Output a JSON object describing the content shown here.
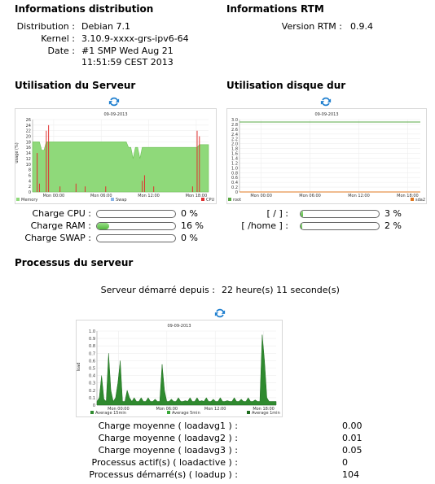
{
  "distribution": {
    "title": "Informations distribution",
    "labels": {
      "distribution": "Distribution :",
      "kernel": "Kernel :",
      "date": "Date :"
    },
    "values": {
      "distribution": "Debian 7.1",
      "kernel": "3.10.9-xxxx-grs-ipv6-64",
      "date_line1": "#1 SMP Wed Aug 21",
      "date_line2": "11:51:59 CEST 2013"
    }
  },
  "rtm": {
    "title": "Informations RTM",
    "version_label": "Version RTM :",
    "version_value": "0.9.4"
  },
  "server_usage": {
    "title": "Utilisation du Serveur",
    "refresh_icon": "refresh-icon",
    "chart_title": "09-09-2013",
    "ylabel": "usage (%)",
    "legend": [
      "Memory",
      "Swap",
      "CPU"
    ],
    "rows": [
      {
        "label": "Charge CPU :",
        "value": "0 %",
        "percent": 0
      },
      {
        "label": "Charge RAM :",
        "value": "16 %",
        "percent": 16
      },
      {
        "label": "Charge SWAP :",
        "value": "0 %",
        "percent": 0
      }
    ]
  },
  "disk_usage": {
    "title": "Utilisation disque dur",
    "refresh_icon": "refresh-icon",
    "chart_title": "09-09-2013",
    "legend": [
      "root",
      "sda2"
    ],
    "rows": [
      {
        "label": "[ / ] :",
        "value": "3 %",
        "percent": 3
      },
      {
        "label": "[ /home ] :",
        "value": "2 %",
        "percent": 2
      }
    ]
  },
  "processes": {
    "title": "Processus du serveur",
    "uptime_label": "Serveur démarré depuis :",
    "uptime_value": "22 heure(s) 11 seconde(s)",
    "refresh_icon": "refresh-icon",
    "chart_title": "09-09-2013",
    "ylabel": "load",
    "legend": [
      "Average 15min",
      "Average 5min",
      "Average 1min"
    ],
    "rows": [
      {
        "label": "Charge moyenne ( loadavg1 ) :",
        "value": "0.00"
      },
      {
        "label": "Charge moyenne ( loadavg2 ) :",
        "value": "0.01"
      },
      {
        "label": "Charge moyenne ( loadavg3 ) :",
        "value": "0.05"
      },
      {
        "label": "Processus actif(s) ( loadactive ) :",
        "value": "0"
      },
      {
        "label": "Processus démarré(s) ( loadup ) :",
        "value": "104"
      }
    ]
  },
  "chart_data": [
    {
      "type": "area",
      "title": "09-09-2013",
      "ylabel": "usage (%)",
      "x_ticks": [
        "Mon 00:00",
        "Mon 06:00",
        "Mon 12:00",
        "Mon 18:00"
      ],
      "ylim": [
        0,
        26
      ],
      "y_ticks": [
        "0",
        "2",
        "4",
        "6",
        "8",
        "10",
        "12",
        "14",
        "16",
        "18",
        "20",
        "22",
        "24",
        "26"
      ],
      "series": [
        {
          "name": "Memory",
          "color": "#8fd97a",
          "values": [
            18,
            18,
            18,
            18,
            15,
            15,
            18,
            18,
            18,
            18,
            18,
            18,
            18,
            18,
            18,
            18,
            18,
            18,
            18,
            18,
            18,
            18,
            18,
            18,
            18,
            18,
            18,
            18,
            18,
            18,
            18,
            18,
            18,
            18,
            18,
            18,
            18,
            18,
            18,
            18,
            18,
            18,
            16,
            16,
            12,
            16,
            16,
            12,
            16,
            16,
            16,
            16,
            16,
            16,
            16,
            16,
            16,
            16,
            16,
            16,
            16,
            16,
            16,
            16,
            16,
            16,
            16,
            16,
            16,
            16,
            16,
            16,
            16,
            17,
            17,
            17,
            17,
            17
          ]
        },
        {
          "name": "Swap",
          "color": "#8ab4e8",
          "values": [
            0
          ]
        },
        {
          "name": "CPU",
          "color": "#e03030",
          "values": [
            0,
            0,
            14,
            3,
            0,
            0,
            22,
            24,
            0,
            0,
            0,
            0,
            2,
            0,
            0,
            0,
            0,
            0,
            0,
            3,
            0,
            0,
            0,
            2,
            0,
            0,
            0,
            0,
            0,
            0,
            0,
            0,
            2,
            0,
            0,
            0,
            0,
            0,
            0,
            0,
            0,
            0,
            0,
            0,
            0,
            0,
            0,
            0,
            4,
            6,
            0,
            0,
            0,
            2,
            0,
            0,
            0,
            0,
            0,
            0,
            0,
            0,
            0,
            0,
            0,
            0,
            0,
            0,
            0,
            0,
            2,
            0,
            22,
            20,
            0,
            0,
            0,
            0
          ]
        }
      ]
    },
    {
      "type": "line",
      "title": "09-09-2013",
      "x_ticks": [
        "Mon 00:00",
        "Mon 06:00",
        "Mon 12:00",
        "Mon 18:00"
      ],
      "ylim": [
        0,
        3.0
      ],
      "y_ticks": [
        "0",
        "0.2",
        "0.4",
        "0.6",
        "0.8",
        "1.0",
        "1.2",
        "1.4",
        "1.6",
        "1.8",
        "2.0",
        "2.2",
        "2.4",
        "2.6",
        "2.8",
        "3.0"
      ],
      "series": [
        {
          "name": "root",
          "color": "#5aa844",
          "values": [
            2.9,
            2.9
          ]
        },
        {
          "name": "sda2",
          "color": "#e07820",
          "values": [
            0,
            0
          ]
        }
      ]
    },
    {
      "type": "area",
      "title": "09-09-2013",
      "ylabel": "load",
      "x_ticks": [
        "Mon 00:00",
        "Mon 06:00",
        "Mon 12:00",
        "Mon 18:00"
      ],
      "ylim": [
        0,
        1.0
      ],
      "y_ticks": [
        "0",
        "0.1",
        "0.2",
        "0.3",
        "0.4",
        "0.5",
        "0.6",
        "0.7",
        "0.8",
        "0.9",
        "1.0"
      ],
      "series": [
        {
          "name": "Average 15min",
          "color": "#2f8a2f",
          "values": [
            0.05,
            0.1,
            0.4,
            0.08,
            0.05,
            0.7,
            0.2,
            0.05,
            0.1,
            0.3,
            0.6,
            0.05,
            0.05,
            0.2,
            0.1,
            0.05,
            0.1,
            0.05,
            0.05,
            0.1,
            0.05,
            0.05,
            0.1,
            0.05,
            0.05,
            0.08,
            0.05,
            0.05,
            0.55,
            0.2,
            0.05,
            0.05,
            0.08,
            0.05,
            0.05,
            0.1,
            0.05,
            0.05,
            0.06,
            0.05,
            0.1,
            0.05,
            0.05,
            0.1,
            0.05,
            0.06,
            0.05,
            0.1,
            0.05,
            0.05,
            0.08,
            0.05,
            0.05,
            0.1,
            0.05,
            0.05,
            0.06,
            0.05,
            0.05,
            0.1,
            0.05,
            0.05,
            0.08,
            0.05,
            0.05,
            0.1,
            0.05,
            0.05,
            0.07,
            0.05,
            0.05,
            0.95,
            0.6,
            0.1,
            0.05,
            0.05,
            0.05,
            0.05
          ]
        },
        {
          "name": "Average 5min",
          "color": "#3aa83a",
          "values": [
            0.02
          ]
        },
        {
          "name": "Average 1min",
          "color": "#1f6d1f",
          "values": [
            0.01
          ]
        }
      ]
    }
  ]
}
